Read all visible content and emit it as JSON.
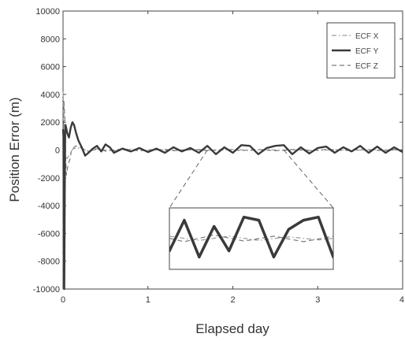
{
  "chart_data": {
    "type": "line",
    "title": "",
    "xlabel": "Elapsed day",
    "ylabel": "Position Error (m)",
    "xlim": [
      0,
      4
    ],
    "ylim": [
      -10000,
      10000
    ],
    "xticks": [
      0,
      1,
      2,
      3,
      4
    ],
    "xtick_labels": [
      "0",
      "1",
      "2",
      "3",
      "4"
    ],
    "yticks": [
      -10000,
      -8000,
      -6000,
      -4000,
      -2000,
      0,
      2000,
      4000,
      6000,
      8000,
      10000
    ],
    "ytick_labels": [
      "-10000",
      "-8000",
      "-6000",
      "-4000",
      "-2000",
      "0",
      "2000",
      "4000",
      "6000",
      "8000",
      "10000"
    ],
    "grid": false,
    "legend_position": "top-right",
    "series": [
      {
        "name": "ECF X",
        "color": "#9a9a9a",
        "style": "dash-dot",
        "x": [
          0,
          0.01,
          0.02,
          0.03,
          0.05,
          0.08,
          0.12,
          0.2,
          0.3,
          0.4,
          0.6,
          0.8,
          1.0,
          1.2,
          1.4,
          1.6,
          1.8,
          2.0,
          2.2,
          2.4,
          2.6,
          2.8,
          3.0,
          3.2,
          3.4,
          3.6,
          3.8,
          4.0
        ],
        "y": [
          4200,
          1500,
          -800,
          -500,
          -600,
          -300,
          100,
          150,
          -100,
          50,
          -50,
          60,
          -40,
          50,
          -40,
          40,
          -30,
          40,
          -30,
          30,
          -20,
          30,
          -30,
          20,
          -20,
          20,
          -20,
          10
        ]
      },
      {
        "name": "ECF Y",
        "color": "#3a3a3a",
        "style": "solid",
        "x": [
          0,
          0.005,
          0.01,
          0.015,
          0.02,
          0.025,
          0.03,
          0.04,
          0.05,
          0.07,
          0.09,
          0.11,
          0.13,
          0.15,
          0.18,
          0.22,
          0.26,
          0.3,
          0.35,
          0.4,
          0.45,
          0.5,
          0.55,
          0.6,
          0.7,
          0.8,
          0.9,
          1.0,
          1.1,
          1.2,
          1.3,
          1.4,
          1.5,
          1.6,
          1.7,
          1.8,
          1.9,
          2.0,
          2.1,
          2.2,
          2.3,
          2.4,
          2.5,
          2.6,
          2.7,
          2.8,
          2.9,
          3.0,
          3.1,
          3.2,
          3.3,
          3.4,
          3.5,
          3.6,
          3.7,
          3.8,
          3.9,
          4.0
        ],
        "y": [
          1500,
          1000,
          -9000,
          -10000,
          -3000,
          1200,
          1800,
          1500,
          1200,
          900,
          1600,
          2000,
          1800,
          1300,
          700,
          200,
          -400,
          -200,
          100,
          300,
          -100,
          400,
          200,
          -200,
          100,
          -100,
          150,
          -150,
          100,
          -200,
          200,
          -100,
          150,
          -200,
          300,
          -300,
          200,
          -200,
          350,
          300,
          -300,
          150,
          300,
          350,
          -300,
          200,
          -250,
          150,
          250,
          -200,
          200,
          -100,
          300,
          -200,
          250,
          -200,
          200,
          -150
        ]
      },
      {
        "name": "ECF Z",
        "color": "#7a7a7a",
        "style": "dash",
        "x": [
          0,
          0.01,
          0.02,
          0.03,
          0.04,
          0.06,
          0.08,
          0.1,
          0.15,
          0.2,
          0.3,
          0.4,
          0.5,
          0.7,
          0.9,
          1.1,
          1.3,
          1.5,
          1.7,
          1.9,
          2.1,
          2.3,
          2.5,
          2.7,
          2.9,
          3.1,
          3.3,
          3.5,
          3.7,
          3.9,
          4.0
        ],
        "y": [
          -9000,
          3500,
          2500,
          -500,
          -1800,
          -1000,
          -700,
          0,
          300,
          200,
          -100,
          100,
          -80,
          80,
          -60,
          60,
          -50,
          60,
          -50,
          60,
          -40,
          40,
          -50,
          40,
          -40,
          40,
          -30,
          30,
          -30,
          30,
          0
        ]
      }
    ],
    "inset": {
      "xlim": [
        1.6,
        2.7
      ],
      "ylim": [
        -500,
        500
      ],
      "source_x_range": [
        1.7,
        2.6
      ],
      "source_y_value": 0
    }
  }
}
